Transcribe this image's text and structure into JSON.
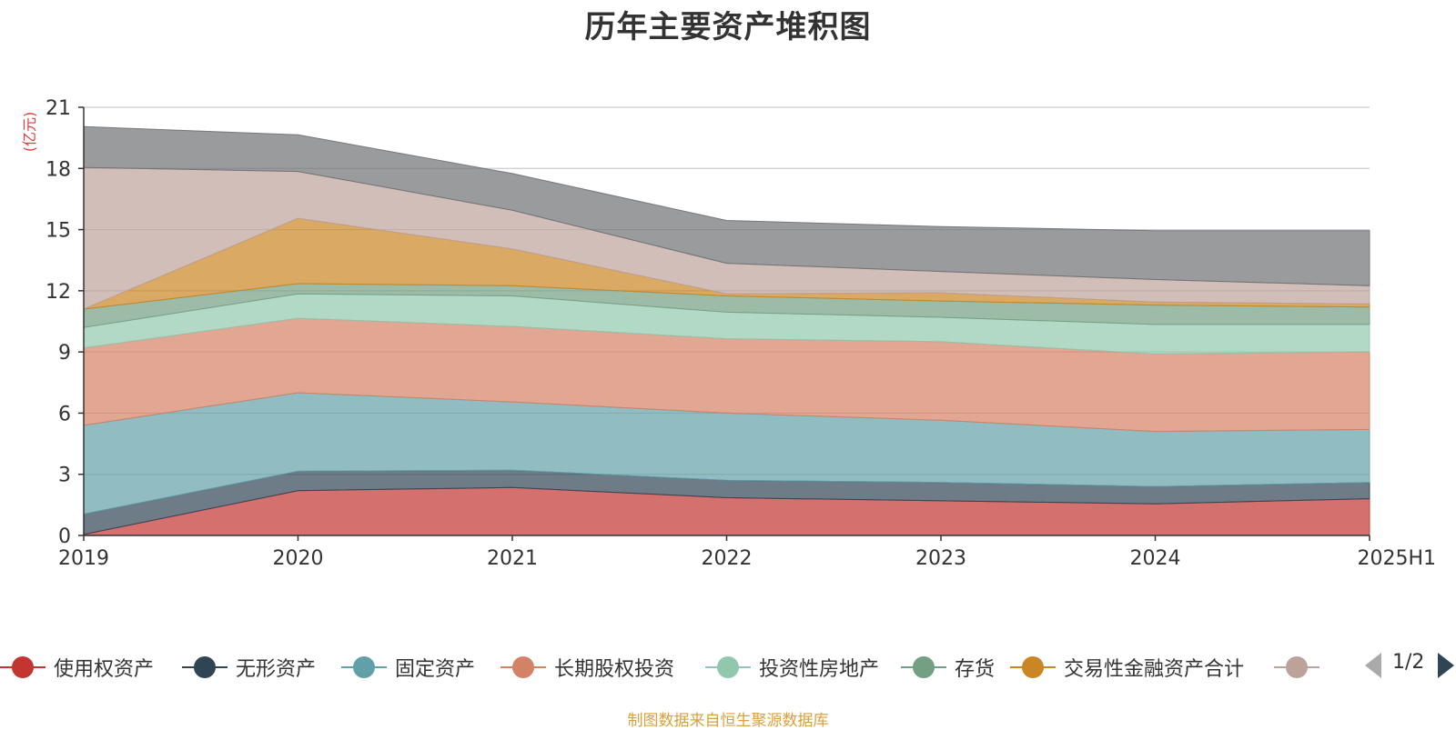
{
  "chart_data": {
    "type": "area",
    "stacked": true,
    "title": "历年主要资产堆积图",
    "unit": "(亿元)",
    "categories": [
      "2019",
      "2020",
      "2021",
      "2022",
      "2023",
      "2024",
      "2025H1"
    ],
    "ylim": [
      0,
      21
    ],
    "yticks": [
      0,
      3,
      6,
      9,
      12,
      15,
      18,
      21
    ],
    "grid": true,
    "series": [
      {
        "name": "使用权资产",
        "color": "#c23531",
        "values": [
          0.05,
          2.2,
          2.35,
          1.85,
          1.7,
          1.55,
          1.8
        ]
      },
      {
        "name": "无形资产",
        "color": "#2f4554",
        "values": [
          1.0,
          0.95,
          0.85,
          0.85,
          0.9,
          0.85,
          0.8
        ]
      },
      {
        "name": "固定资产",
        "color": "#61a0a8",
        "values": [
          4.35,
          3.85,
          3.35,
          3.3,
          3.05,
          2.7,
          2.6
        ]
      },
      {
        "name": "长期股权投资",
        "color": "#d48265",
        "values": [
          3.8,
          3.65,
          3.7,
          3.65,
          3.85,
          3.8,
          3.8
        ]
      },
      {
        "name": "投资性房地产",
        "color": "#91c7ae",
        "values": [
          1.0,
          1.2,
          1.5,
          1.3,
          1.2,
          1.45,
          1.35
        ]
      },
      {
        "name": "存货",
        "color": "#749f83",
        "values": [
          0.9,
          0.5,
          0.5,
          0.8,
          0.8,
          0.95,
          0.85
        ]
      },
      {
        "name": "交易性金融资产合计",
        "color": "#ca8622",
        "values": [
          0.0,
          3.2,
          1.8,
          0.1,
          0.4,
          0.15,
          0.15
        ]
      },
      {
        "name": "",
        "color": "#bda29a",
        "values": [
          6.95,
          2.3,
          1.9,
          1.5,
          1.05,
          1.1,
          0.9
        ]
      },
      {
        "name": "",
        "color": "#6e7074",
        "values": [
          2.0,
          1.8,
          1.8,
          2.1,
          2.2,
          2.4,
          2.7
        ]
      }
    ]
  },
  "legend": {
    "page": "1/2",
    "prev_icon": "triangle-left-icon",
    "next_icon": "triangle-right-icon"
  },
  "source_note": "制图数据来自恒生聚源数据库"
}
